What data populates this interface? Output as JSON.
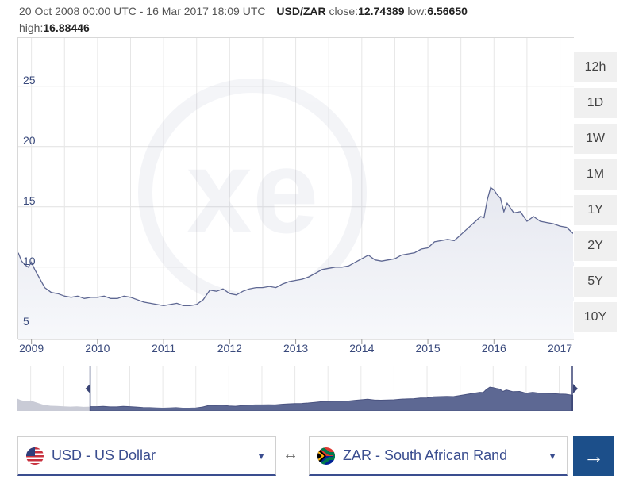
{
  "header": {
    "date_range": "20 Oct 2008 00:00 UTC - 16 Mar 2017 18:09 UTC",
    "pair": "USD/ZAR",
    "close_label": "close:",
    "close_value": "12.74389",
    "low_label": "low:",
    "low_value": "6.56650",
    "high_label": "high:",
    "high_value": "16.88446"
  },
  "range_buttons": [
    "12h",
    "1D",
    "1W",
    "1M",
    "1Y",
    "2Y",
    "5Y",
    "10Y"
  ],
  "chart_data": {
    "type": "area",
    "title": "USD/ZAR",
    "ylim": [
      4,
      29
    ],
    "y_ticks": [
      "25",
      "20",
      "15",
      "10",
      "5"
    ],
    "y_tick_values": [
      25,
      20,
      15,
      10,
      5
    ],
    "xlim": [
      2008.8,
      2017.21
    ],
    "x_ticks": [
      "2009",
      "2010",
      "2011",
      "2012",
      "2013",
      "2014",
      "2015",
      "2016",
      "2017"
    ],
    "x_tick_values": [
      2009,
      2010,
      2011,
      2012,
      2013,
      2014,
      2015,
      2016,
      2017
    ],
    "x": [
      2008.8,
      2008.85,
      2008.9,
      2008.95,
      2009.0,
      2009.05,
      2009.1,
      2009.2,
      2009.3,
      2009.4,
      2009.5,
      2009.6,
      2009.7,
      2009.8,
      2009.9,
      2010.0,
      2010.1,
      2010.2,
      2010.3,
      2010.4,
      2010.5,
      2010.6,
      2010.7,
      2010.8,
      2010.9,
      2011.0,
      2011.1,
      2011.2,
      2011.3,
      2011.4,
      2011.5,
      2011.6,
      2011.7,
      2011.8,
      2011.9,
      2012.0,
      2012.1,
      2012.2,
      2012.3,
      2012.4,
      2012.5,
      2012.6,
      2012.7,
      2012.8,
      2012.9,
      2013.0,
      2013.1,
      2013.2,
      2013.3,
      2013.4,
      2013.5,
      2013.6,
      2013.7,
      2013.8,
      2013.9,
      2014.0,
      2014.1,
      2014.2,
      2014.3,
      2014.4,
      2014.5,
      2014.6,
      2014.7,
      2014.8,
      2014.9,
      2015.0,
      2015.1,
      2015.2,
      2015.3,
      2015.4,
      2015.5,
      2015.6,
      2015.7,
      2015.8,
      2015.85,
      2015.9,
      2015.95,
      2016.0,
      2016.05,
      2016.1,
      2016.15,
      2016.2,
      2016.3,
      2016.4,
      2016.5,
      2016.6,
      2016.7,
      2016.8,
      2016.9,
      2017.0,
      2017.1,
      2017.21
    ],
    "series": [
      {
        "name": "USD/ZAR",
        "values": [
          11.2,
          10.5,
          10.2,
          10.0,
          10.4,
          9.8,
          9.3,
          8.3,
          7.9,
          7.8,
          7.6,
          7.5,
          7.6,
          7.4,
          7.5,
          7.5,
          7.6,
          7.4,
          7.4,
          7.6,
          7.5,
          7.3,
          7.1,
          7.0,
          6.9,
          6.8,
          6.9,
          7.0,
          6.8,
          6.8,
          6.9,
          7.3,
          8.1,
          8.0,
          8.2,
          7.8,
          7.7,
          8.0,
          8.2,
          8.3,
          8.3,
          8.4,
          8.3,
          8.6,
          8.8,
          8.9,
          9.0,
          9.2,
          9.5,
          9.8,
          9.9,
          10.0,
          10.0,
          10.1,
          10.4,
          10.7,
          11.0,
          10.6,
          10.5,
          10.6,
          10.7,
          11.0,
          11.1,
          11.2,
          11.5,
          11.6,
          12.1,
          12.2,
          12.3,
          12.2,
          12.7,
          13.2,
          13.7,
          14.2,
          14.1,
          15.6,
          16.6,
          16.4,
          16.0,
          15.7,
          14.6,
          15.3,
          14.5,
          14.6,
          13.8,
          14.2,
          13.8,
          13.7,
          13.6,
          13.4,
          13.3,
          12.74
        ]
      }
    ]
  },
  "navigator": {
    "x_range": [
      2008.8,
      2017.21
    ],
    "selection": [
      2009.9,
      2017.21
    ]
  },
  "converter": {
    "from_label": "USD - US Dollar",
    "to_label": "ZAR - South African Rand",
    "swap_icon": "↔",
    "go_icon": "→"
  },
  "colors": {
    "line": "#5e6792",
    "area_top": "#e9ebf2",
    "nav_fill": "#5d6893",
    "go_button": "#1c4f8a",
    "accent": "#3a4d8f"
  }
}
